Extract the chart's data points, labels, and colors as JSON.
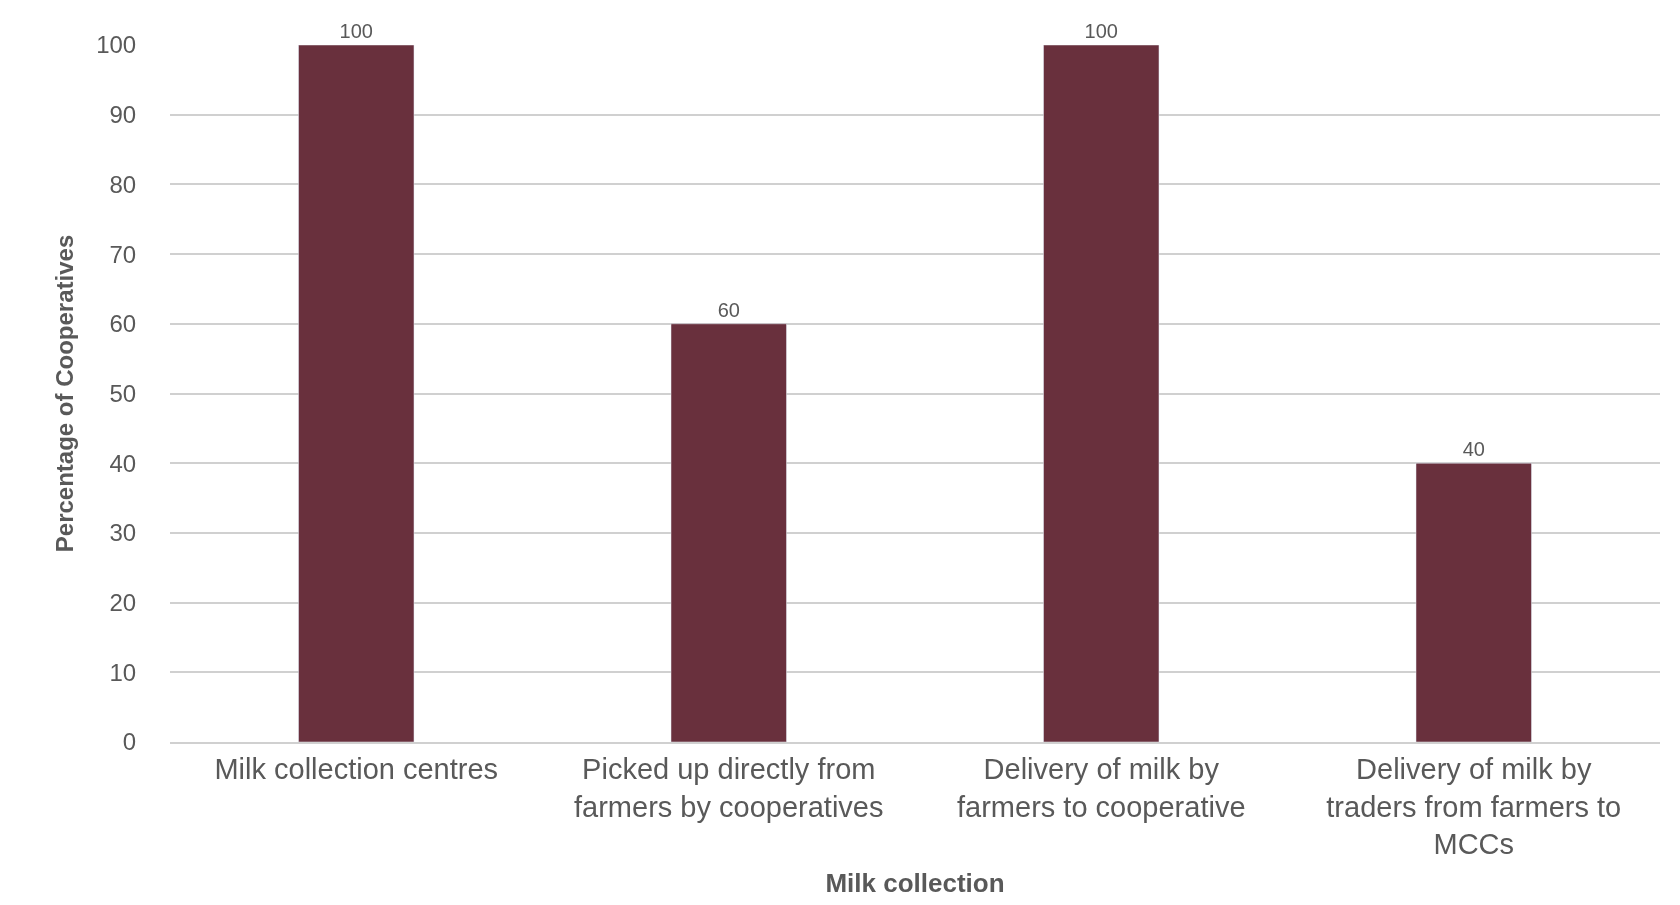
{
  "chart_data": {
    "type": "bar",
    "xlabel": "Milk collection",
    "ylabel": "Percentage of Cooperatives",
    "categories": [
      "Milk collection centres",
      "Picked up directly from farmers by cooperatives",
      "Delivery of milk by farmers to cooperative",
      "Delivery of milk by traders from farmers to MCCs"
    ],
    "values": [
      100,
      60,
      100,
      40
    ],
    "color": "#69303d",
    "ylim": [
      0,
      100
    ],
    "yticks": [
      0,
      10,
      20,
      30,
      40,
      50,
      60,
      70,
      80,
      90,
      100
    ],
    "grid": "y",
    "data_labels": true,
    "legend": false
  }
}
